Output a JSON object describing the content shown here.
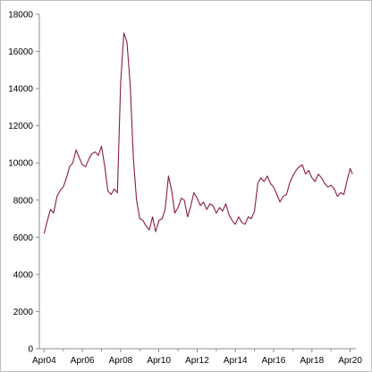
{
  "chart_data": {
    "type": "line",
    "title": "",
    "xlabel": "",
    "ylabel": "",
    "ylim": [
      0,
      18000
    ],
    "y_ticks": [
      0,
      2000,
      4000,
      6000,
      8000,
      10000,
      12000,
      14000,
      16000,
      18000
    ],
    "y_tick_labels": [
      "0",
      "2000",
      "4000",
      "6000",
      "8000",
      "10000",
      "12000",
      "14000",
      "16000",
      "18000"
    ],
    "x_tick_labels": [
      "Apr04",
      "Apr06",
      "Apr08",
      "Apr10",
      "Apr12",
      "Apr14",
      "Apr16",
      "Apr18",
      "Apr20"
    ],
    "x_tick_years": [
      2004,
      2006,
      2008,
      2010,
      2012,
      2014,
      2016,
      2018,
      2020
    ],
    "xlim": [
      2003.75,
      2020.3
    ],
    "grid": false,
    "legend": "none",
    "series": [
      {
        "color": "#8b1a4a",
        "x": [
          2004.0,
          2004.17,
          2004.33,
          2004.5,
          2004.67,
          2004.83,
          2005.0,
          2005.17,
          2005.33,
          2005.5,
          2005.67,
          2005.83,
          2006.0,
          2006.17,
          2006.33,
          2006.5,
          2006.67,
          2006.83,
          2007.0,
          2007.17,
          2007.33,
          2007.5,
          2007.67,
          2007.83,
          2008.0,
          2008.17,
          2008.33,
          2008.5,
          2008.67,
          2008.83,
          2009.0,
          2009.17,
          2009.33,
          2009.5,
          2009.67,
          2009.83,
          2010.0,
          2010.17,
          2010.33,
          2010.5,
          2010.67,
          2010.83,
          2011.0,
          2011.17,
          2011.33,
          2011.5,
          2011.67,
          2011.83,
          2012.0,
          2012.17,
          2012.33,
          2012.5,
          2012.67,
          2012.83,
          2013.0,
          2013.17,
          2013.33,
          2013.5,
          2013.67,
          2013.83,
          2014.0,
          2014.17,
          2014.33,
          2014.5,
          2014.67,
          2014.83,
          2015.0,
          2015.17,
          2015.33,
          2015.5,
          2015.67,
          2015.83,
          2016.0,
          2016.17,
          2016.33,
          2016.5,
          2016.67,
          2016.83,
          2017.0,
          2017.17,
          2017.33,
          2017.5,
          2017.67,
          2017.83,
          2018.0,
          2018.17,
          2018.33,
          2018.5,
          2018.67,
          2018.83,
          2019.0,
          2019.17,
          2019.33,
          2019.5,
          2019.67,
          2019.83,
          2020.0,
          2020.12
        ],
        "values": [
          6200,
          6900,
          7500,
          7300,
          8200,
          8500,
          8700,
          9200,
          9800,
          10000,
          10700,
          10300,
          9900,
          9800,
          10200,
          10500,
          10600,
          10400,
          10900,
          9800,
          8500,
          8300,
          8600,
          8400,
          14300,
          17000,
          16500,
          14200,
          10200,
          8000,
          7000,
          6900,
          6600,
          6400,
          7100,
          6300,
          6900,
          7000,
          7500,
          9300,
          8500,
          7300,
          7600,
          8100,
          8000,
          7100,
          7700,
          8400,
          8100,
          7700,
          7900,
          7500,
          7800,
          7700,
          7300,
          7600,
          7400,
          7800,
          7200,
          6900,
          6700,
          7100,
          6800,
          6700,
          7100,
          7000,
          7400,
          8900,
          9200,
          9000,
          9300,
          8900,
          8700,
          8300,
          7900,
          8200,
          8300,
          8900,
          9300,
          9600,
          9800,
          9900,
          9400,
          9600,
          9200,
          9000,
          9400,
          9200,
          8900,
          8700,
          8800,
          8600,
          8200,
          8400,
          8300,
          9000,
          9700,
          9400
        ]
      }
    ]
  }
}
